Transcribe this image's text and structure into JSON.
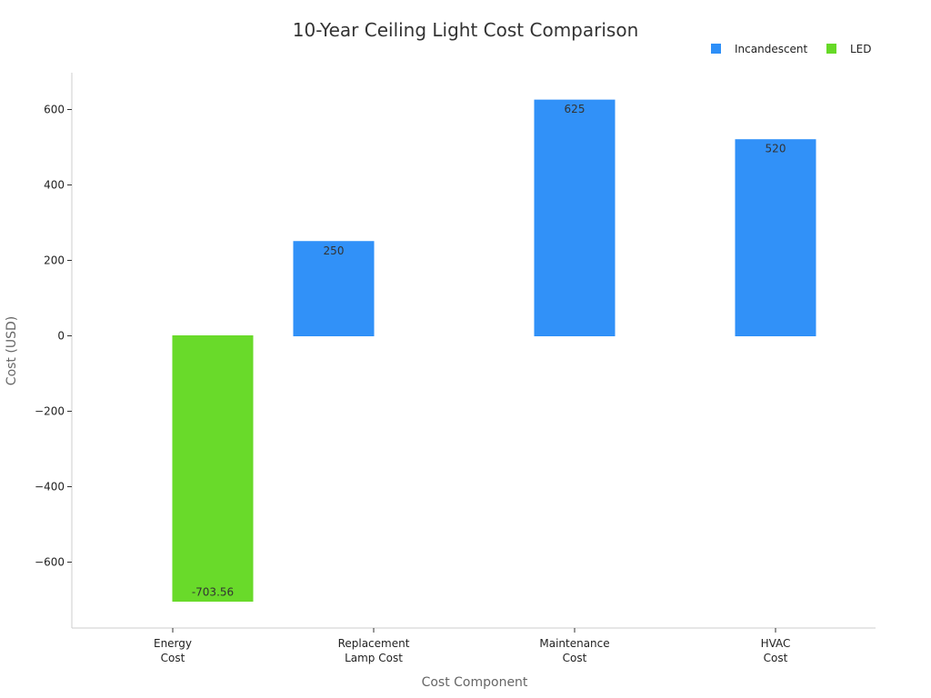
{
  "chart_data": {
    "type": "bar",
    "title": "10-Year Ceiling Light Cost Comparison",
    "xlabel": "Cost Component",
    "ylabel": "Cost (USD)",
    "categories": [
      [
        "Energy",
        "Cost"
      ],
      [
        "Replacement",
        "Lamp Cost"
      ],
      [
        "Maintenance",
        "Cost"
      ],
      [
        "HVAC",
        "Cost"
      ]
    ],
    "series": [
      {
        "name": "Incandescent",
        "color": "#2d8ff8",
        "values": [
          null,
          250,
          625,
          520
        ]
      },
      {
        "name": "LED",
        "color": "#66d926",
        "values": [
          -703.56,
          null,
          null,
          null
        ]
      }
    ],
    "ylim": [
      -780,
      700
    ],
    "yticks": [
      600,
      400,
      200,
      0,
      -200,
      -400,
      -600
    ],
    "ytick_labels": [
      "600",
      "400",
      "200",
      "0",
      "−200",
      "−400",
      "−600"
    ],
    "data_labels": [
      {
        "category": 0,
        "series": 1,
        "text": "-703.56"
      },
      {
        "category": 1,
        "series": 0,
        "text": "250"
      },
      {
        "category": 2,
        "series": 0,
        "text": "625"
      },
      {
        "category": 3,
        "series": 0,
        "text": "520"
      }
    ],
    "legend_position": "top-right",
    "grid": false
  }
}
